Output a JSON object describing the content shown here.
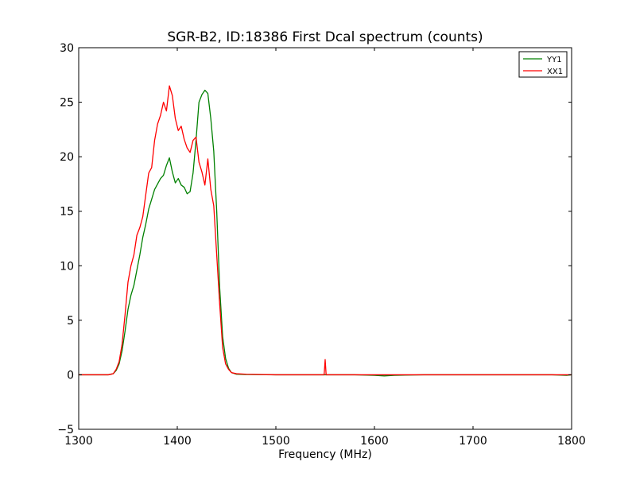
{
  "chart_data": {
    "type": "line",
    "title": "SGR-B2, ID:18386 First Dcal spectrum (counts)",
    "xlabel": "Frequency (MHz)",
    "ylabel": "",
    "xlim": [
      1300,
      1800
    ],
    "ylim": [
      -5,
      30
    ],
    "x_ticks": [
      1300,
      1400,
      1500,
      1600,
      1700,
      1800
    ],
    "y_ticks": [
      -5,
      0,
      5,
      10,
      15,
      20,
      25,
      30
    ],
    "x_tick_labels": [
      "1300",
      "1400",
      "1500",
      "1600",
      "1700",
      "1800"
    ],
    "y_tick_labels": [
      "−5",
      "0",
      "5",
      "10",
      "15",
      "20",
      "25",
      "30"
    ],
    "grid": false,
    "legend_position": "top-right",
    "series": [
      {
        "name": "YY1",
        "color": "#008000",
        "points": [
          [
            1300,
            0
          ],
          [
            1330,
            0
          ],
          [
            1335,
            0.1
          ],
          [
            1338,
            0.4
          ],
          [
            1341,
            1.0
          ],
          [
            1344,
            2.2
          ],
          [
            1347,
            4.0
          ],
          [
            1350,
            6.0
          ],
          [
            1353,
            7.3
          ],
          [
            1356,
            8.2
          ],
          [
            1359,
            9.6
          ],
          [
            1362,
            11.0
          ],
          [
            1365,
            12.6
          ],
          [
            1368,
            13.8
          ],
          [
            1371,
            15.2
          ],
          [
            1374,
            16.1
          ],
          [
            1377,
            17.0
          ],
          [
            1380,
            17.5
          ],
          [
            1383,
            18.0
          ],
          [
            1386,
            18.3
          ],
          [
            1389,
            19.2
          ],
          [
            1392,
            19.9
          ],
          [
            1395,
            18.6
          ],
          [
            1398,
            17.6
          ],
          [
            1401,
            18.0
          ],
          [
            1404,
            17.4
          ],
          [
            1407,
            17.2
          ],
          [
            1410,
            16.6
          ],
          [
            1413,
            16.8
          ],
          [
            1416,
            18.5
          ],
          [
            1419,
            21.5
          ],
          [
            1422,
            25.0
          ],
          [
            1425,
            25.7
          ],
          [
            1428,
            26.1
          ],
          [
            1431,
            25.8
          ],
          [
            1434,
            23.5
          ],
          [
            1437,
            20.5
          ],
          [
            1440,
            15.0
          ],
          [
            1443,
            8.0
          ],
          [
            1446,
            3.5
          ],
          [
            1449,
            1.5
          ],
          [
            1452,
            0.6
          ],
          [
            1455,
            0.2
          ],
          [
            1460,
            0.05
          ],
          [
            1470,
            0.02
          ],
          [
            1500,
            0
          ],
          [
            1530,
            0
          ],
          [
            1550,
            0
          ],
          [
            1580,
            0
          ],
          [
            1600,
            -0.05
          ],
          [
            1610,
            -0.1
          ],
          [
            1620,
            -0.05
          ],
          [
            1650,
            0
          ],
          [
            1680,
            0
          ],
          [
            1700,
            0
          ],
          [
            1720,
            0
          ],
          [
            1750,
            0
          ],
          [
            1780,
            0
          ],
          [
            1795,
            -0.05
          ],
          [
            1800,
            0
          ]
        ]
      },
      {
        "name": "XX1",
        "color": "#ff0000",
        "points": [
          [
            1300,
            0
          ],
          [
            1330,
            0
          ],
          [
            1335,
            0.1
          ],
          [
            1338,
            0.5
          ],
          [
            1341,
            1.2
          ],
          [
            1344,
            2.8
          ],
          [
            1347,
            5.5
          ],
          [
            1350,
            8.5
          ],
          [
            1353,
            10.0
          ],
          [
            1356,
            11.0
          ],
          [
            1359,
            12.8
          ],
          [
            1362,
            13.5
          ],
          [
            1365,
            14.5
          ],
          [
            1368,
            16.5
          ],
          [
            1371,
            18.5
          ],
          [
            1374,
            19.0
          ],
          [
            1377,
            21.5
          ],
          [
            1380,
            23.0
          ],
          [
            1383,
            23.8
          ],
          [
            1386,
            25.0
          ],
          [
            1389,
            24.2
          ],
          [
            1392,
            26.5
          ],
          [
            1395,
            25.6
          ],
          [
            1398,
            23.5
          ],
          [
            1401,
            22.4
          ],
          [
            1404,
            22.8
          ],
          [
            1407,
            21.6
          ],
          [
            1410,
            20.8
          ],
          [
            1413,
            20.4
          ],
          [
            1416,
            21.5
          ],
          [
            1419,
            21.8
          ],
          [
            1422,
            19.5
          ],
          [
            1425,
            18.6
          ],
          [
            1428,
            17.4
          ],
          [
            1431,
            19.8
          ],
          [
            1434,
            17.0
          ],
          [
            1437,
            15.5
          ],
          [
            1440,
            11.0
          ],
          [
            1443,
            6.5
          ],
          [
            1446,
            2.5
          ],
          [
            1449,
            1.0
          ],
          [
            1452,
            0.5
          ],
          [
            1455,
            0.2
          ],
          [
            1460,
            0.1
          ],
          [
            1470,
            0.05
          ],
          [
            1500,
            0
          ],
          [
            1549,
            0
          ],
          [
            1550,
            1.4
          ],
          [
            1551,
            0
          ],
          [
            1600,
            0
          ],
          [
            1650,
            0
          ],
          [
            1700,
            0
          ],
          [
            1750,
            0
          ],
          [
            1800,
            0
          ]
        ]
      }
    ]
  }
}
